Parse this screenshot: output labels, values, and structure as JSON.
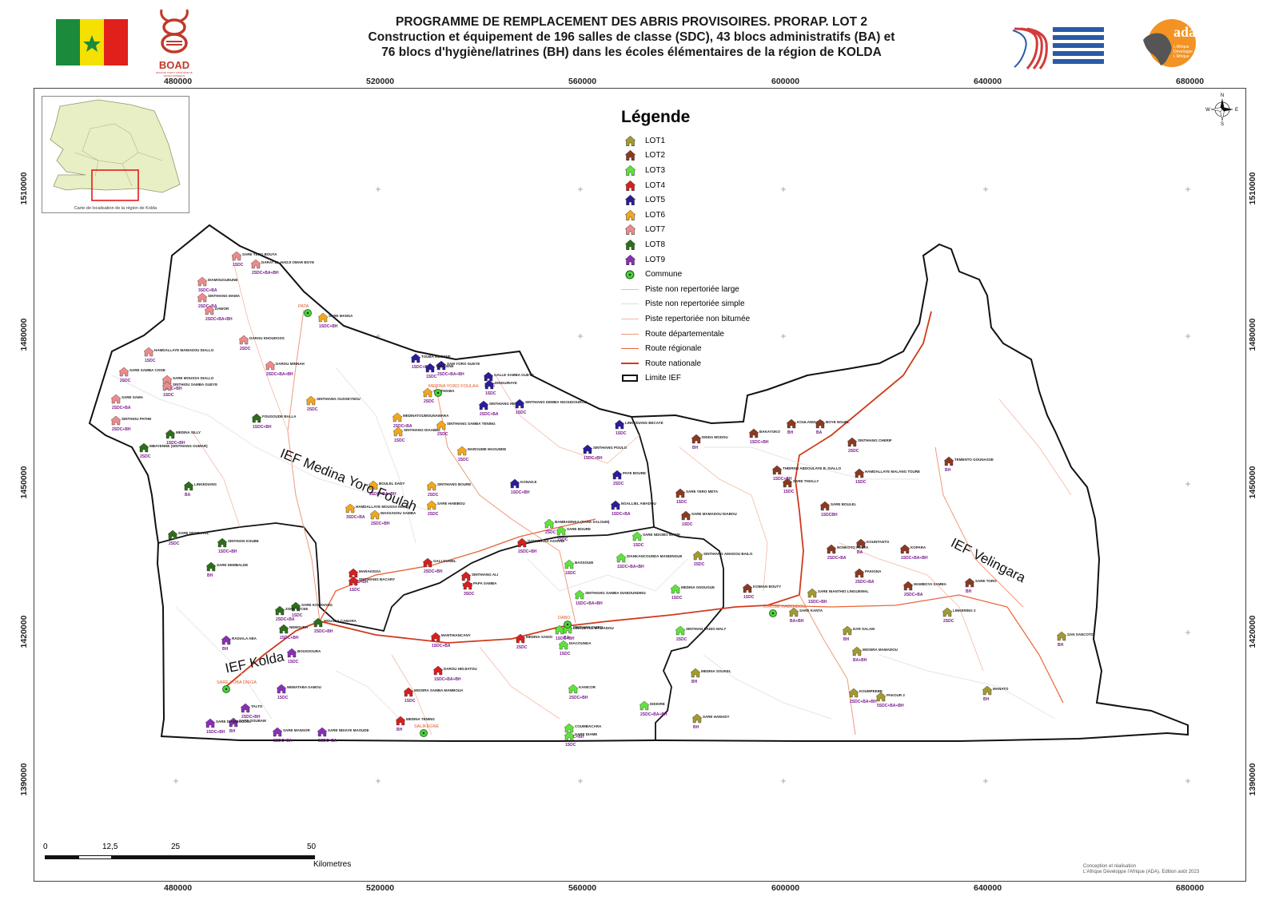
{
  "header": {
    "title_line1": "PROGRAMME DE REMPLACEMENT DES ABRIS PROVISOIRES. PRORAP. LOT 2",
    "title_line2": "Construction et équipement de 196 salles de classe (SDC), 43 blocs administratifs (BA) et",
    "title_line3": "76 blocs d'hygiène/latrines (BH) dans les écoles élémentaires de la région de KOLDA",
    "boad_text": "BOAD",
    "boad_sub": "BANQUE OUEST AFRICAINE DE DEVELOPPEMENT",
    "ada_text": "ada",
    "ada_sub": "L'Afrique Développe L'Afrique"
  },
  "axes": {
    "x_ticks": [
      "480000",
      "520000",
      "560000",
      "600000",
      "640000",
      "680000"
    ],
    "y_ticks": [
      "1510000",
      "1480000",
      "1450000",
      "1420000",
      "1390000"
    ]
  },
  "inset": {
    "caption": "Carte de localisation de la région de Kolda"
  },
  "legend": {
    "title": "Légende",
    "lots": [
      {
        "label": "LOT1",
        "color": "#a39a2e"
      },
      {
        "label": "LOT2",
        "color": "#8b3a22"
      },
      {
        "label": "LOT3",
        "color": "#5fe33a"
      },
      {
        "label": "LOT4",
        "color": "#d81f1f"
      },
      {
        "label": "LOT5",
        "color": "#2b1d99"
      },
      {
        "label": "LOT6",
        "color": "#f2a81c"
      },
      {
        "label": "LOT7",
        "color": "#f08a8a"
      },
      {
        "label": "LOT8",
        "color": "#2d6e1a"
      },
      {
        "label": "LOT9",
        "color": "#8a2fb8"
      }
    ],
    "commune": "Commune",
    "roads": [
      {
        "label": "Piste non repertoriée large",
        "color": "#c7c7c7",
        "width": 1
      },
      {
        "label": "Piste non repertoriée simple",
        "color": "#dddddd",
        "width": 1
      },
      {
        "label": "Piste repertoriée non bitumée",
        "color": "#f3b8a8",
        "width": 1
      },
      {
        "label": "Route départementale",
        "color": "#ee9a7a",
        "width": 1.2
      },
      {
        "label": "Route régionale",
        "color": "#e8653a",
        "width": 1.6
      },
      {
        "label": "Route nationale",
        "color": "#cf3b1c",
        "width": 2
      }
    ],
    "limit": "Limite IEF"
  },
  "ief_labels": {
    "medina": "IEF Medina Yoro Foulah",
    "velingara": "IEF Velingara",
    "kolda": "IEF Kolda"
  },
  "communes": [
    "PATA",
    "MEDINA YORO FOULAH",
    "DABO",
    "DIAOBE KABENDOU",
    "SARE YOBA DIEGA",
    "SALIKEGNE"
  ],
  "schools": [
    {
      "name": "SARE YERO BOUYA",
      "code": "1SDC",
      "lot": 7
    },
    {
      "name": "DARAT EL HADJI OMAR BOYE",
      "code": "2SDC+BA+BH",
      "lot": 7
    },
    {
      "name": "DIAMOUGUEUNE",
      "code": "3SDC+BA",
      "lot": 7
    },
    {
      "name": "SINTHIANG MAMA",
      "code": "2SDC+BA",
      "lot": 7
    },
    {
      "name": "DAWOR",
      "code": "2SDC+BA+BH",
      "lot": 7
    },
    {
      "name": "SARE MANSA",
      "code": "1SDC+BH",
      "lot": 6
    },
    {
      "name": "DAROU KHOUDOSS",
      "code": "2SDC",
      "lot": 7
    },
    {
      "name": "HAMDALLAYE MAMADOU DIALLO",
      "code": "1SDC",
      "lot": 7
    },
    {
      "name": "DAROU MINNAH",
      "code": "2SDC+BA+BH",
      "lot": 7
    },
    {
      "name": "SARE SAMBA CISSE",
      "code": "2SDC",
      "lot": 7
    },
    {
      "name": "SARE MOUSSA DIALLO",
      "code": "1SDC+BH",
      "lot": 7
    },
    {
      "name": "SINTHIOU SAMBA GUEYE",
      "code": "1SDC",
      "lot": 7
    },
    {
      "name": "SARE SAMA",
      "code": "2SDC+BA",
      "lot": 7
    },
    {
      "name": "SINTHIOU PATHE",
      "code": "2SDC+BH",
      "lot": 7
    },
    {
      "name": "MEDINA SILLY",
      "code": "1SDC+BH",
      "lot": 8
    },
    {
      "name": "MBAYENNE (SINTHIANG OUMAR)",
      "code": "2SDC",
      "lot": 8
    },
    {
      "name": "SINTHIANG OUSSEYNOU",
      "code": "2SDC",
      "lot": 6
    },
    {
      "name": "FOUGOUDE BALLA",
      "code": "1SDC+BH",
      "lot": 8
    },
    {
      "name": "TOUBA MBOYNE",
      "code": "1SDC+BH",
      "lot": 5
    },
    {
      "name": "SAM YORO GUEYE",
      "code": "2SDC+BA+BH",
      "lot": 5
    },
    {
      "name": "THIALENE",
      "code": "1SDC",
      "lot": 5
    },
    {
      "name": "SANTHIABA",
      "code": "2SDC",
      "lot": 6
    },
    {
      "name": "GALLE SAMBA GUEYE",
      "code": "2SDC",
      "lot": 5
    },
    {
      "name": "DINGUIRAYE",
      "code": "1SDC",
      "lot": 5
    },
    {
      "name": "SINTHIANG HELLA",
      "code": "2SDC+BA",
      "lot": 5
    },
    {
      "name": "SINTHIANG DEMBA NGOUDOUROU",
      "code": "1SDC",
      "lot": 5
    },
    {
      "name": "MEDINATOUMOUNAWARA",
      "code": "2SDC+BA",
      "lot": 6
    },
    {
      "name": "SINTHIANG DIAABEL",
      "code": "1SDC",
      "lot": 6
    },
    {
      "name": "SINTHIANG SAMBA TENING",
      "code": "2SDC",
      "lot": 6
    },
    {
      "name": "LINKEDIANG",
      "code": "BA",
      "lot": 8
    },
    {
      "name": "KONADJI",
      "code": "1SDC+BH",
      "lot": 5
    },
    {
      "name": "MAROUME MAOUNDE",
      "code": "2SDC",
      "lot": 6
    },
    {
      "name": "SINTHIANG POULO",
      "code": "1SDC+BH",
      "lot": 5
    },
    {
      "name": "PAYE BOURE",
      "code": "2SDC",
      "lot": 5
    },
    {
      "name": "BOULEL DADY",
      "code": "2SDC+BA+BH",
      "lot": 6
    },
    {
      "name": "SINTHIANG BOURE",
      "code": "2SDC",
      "lot": 6
    },
    {
      "name": "HAMDALLAYE MOUSSA MOLO",
      "code": "3SDC+BA",
      "lot": 6
    },
    {
      "name": "WASSADOU SAMBA",
      "code": "2SDC+BH",
      "lot": 6
    },
    {
      "name": "SARE HABIBOU",
      "code": "2SDC",
      "lot": 6
    },
    {
      "name": "NGALLIEL AMADOU",
      "code": "1SDC+BA",
      "lot": 5
    },
    {
      "name": "SARE DEMBAYEL",
      "code": "2SDC",
      "lot": 8
    },
    {
      "name": "SINTHIAN KOUBE",
      "code": "1SDC+BH",
      "lot": 8
    },
    {
      "name": "SARE DEMBALDE",
      "code": "BH",
      "lot": 8
    },
    {
      "name": "BAMBADINKA (SARE SALOUM)",
      "code": "2SDC",
      "lot": 3
    },
    {
      "name": "SARE BOURE",
      "code": "2SDC",
      "lot": 3
    },
    {
      "name": "GOUNDAGA ASSANE",
      "code": "2SDC+BH",
      "lot": 4
    },
    {
      "name": "GALLDUWEL",
      "code": "2SDC+BH",
      "lot": 4
    },
    {
      "name": "MARAKISSA",
      "code": "1SDC+BH",
      "lot": 4
    },
    {
      "name": "SINTHIANG BACARY",
      "code": "1SDC",
      "lot": 4
    },
    {
      "name": "SINTHIANG ALI",
      "code": "1SDC",
      "lot": 4
    },
    {
      "name": "PAPA SAMBA",
      "code": "3SDC",
      "lot": 4
    },
    {
      "name": "BASSOUM",
      "code": "1SDC",
      "lot": 3
    },
    {
      "name": "DIANKANCOUNDA MANDINGUE",
      "code": "1SDC+BA+BH",
      "lot": 3
    },
    {
      "name": "SARE NDIOBO MAWE",
      "code": "1SDC",
      "lot": 3
    },
    {
      "name": "SINTHIANG SAMBA DIABOUNDING",
      "code": "1SDC+BA+BH",
      "lot": 3
    },
    {
      "name": "EFA LINGUEYEL MAMADOU",
      "code": "1SDC+BH",
      "lot": 3
    },
    {
      "name": "SINTHIAN GUIRO",
      "code": "BA",
      "lot": 3
    },
    {
      "name": "MANTHIANCANY",
      "code": "1SDC+BA",
      "lot": 4
    },
    {
      "name": "MEDINA SADIO",
      "code": "2SDC",
      "lot": 4
    },
    {
      "name": "DIACOUNDA",
      "code": "1SDC",
      "lot": 3
    },
    {
      "name": "MEDINA GNOUGUE",
      "code": "1SDC",
      "lot": 3
    },
    {
      "name": "SINTHIAN SADIO MALY",
      "code": "2SDC",
      "lot": 3
    },
    {
      "name": "DAROU HIDJIATOU",
      "code": "1SDC+BA+BH",
      "lot": 4
    },
    {
      "name": "KANICOR",
      "code": "2SDC+BH",
      "lot": 3
    },
    {
      "name": "MISSIRA SAMBA MAMBOUA",
      "code": "1SDC",
      "lot": 4
    },
    {
      "name": "DIDIORE",
      "code": "2SDC+BA+BH",
      "lot": 3
    },
    {
      "name": "MEDINA TENING",
      "code": "BH",
      "lot": 4
    },
    {
      "name": "COUMBACARA",
      "code": "1SDC+BH",
      "lot": 3
    },
    {
      "name": "SARE DIAME",
      "code": "1SDC",
      "lot": 3
    },
    {
      "name": "SARE KOLIDIANG",
      "code": "1SDC",
      "lot": 8
    },
    {
      "name": "ZONE LYCEE",
      "code": "2SDC+BA",
      "lot": 8
    },
    {
      "name": "NEMOURA",
      "code": "2SDC+BH",
      "lot": 8
    },
    {
      "name": "RADIALA ABA",
      "code": "BH",
      "lot": 9
    },
    {
      "name": "BOUSSOURA",
      "code": "1SDC",
      "lot": 9
    },
    {
      "name": "NEMATABA GABOU",
      "code": "1SDC",
      "lot": 9
    },
    {
      "name": "TALTO",
      "code": "2SDC+BH",
      "lot": 9
    },
    {
      "name": "SARE SOUBAM",
      "code": "BH",
      "lot": 9
    },
    {
      "name": "SARE DIAMBOULOL",
      "code": "1SDC+BH",
      "lot": 9
    },
    {
      "name": "SARE MANSOR",
      "code": "2SDC+BA",
      "lot": 9
    },
    {
      "name": "SARE NDIAYE MAOUDE",
      "code": "3SDC+BA",
      "lot": 9
    },
    {
      "name": "MOUSSA CAMARA",
      "code": "2SDC+BH",
      "lot": 8
    },
    {
      "name": "LINKEDIANG BECAYE",
      "code": "1SDC",
      "lot": 5
    },
    {
      "name": "DIDDA MODOU",
      "code": "BH",
      "lot": 2
    },
    {
      "name": "BAKAYOKO",
      "code": "1SDC+BH",
      "lot": 2
    },
    {
      "name": "KOULANDIANG",
      "code": "BH",
      "lot": 2
    },
    {
      "name": "BOYE NGUEL",
      "code": "BA",
      "lot": 2
    },
    {
      "name": "SINTHIANG CHERIF",
      "code": "2SDC",
      "lot": 2
    },
    {
      "name": "TEMENTO GOUNASSE",
      "code": "BH",
      "lot": 2
    },
    {
      "name": "HAMDALLAYE MALANG TOURE",
      "code": "1SDC",
      "lot": 2
    },
    {
      "name": "THIERNO ABDOULAYE B. DIALLO",
      "code": "1SDC+BH",
      "lot": 2
    },
    {
      "name": "SARE THIALLY",
      "code": "1SDC",
      "lot": 2
    },
    {
      "name": "SARE YERO META",
      "code": "1SDC",
      "lot": 2
    },
    {
      "name": "SARE MAMADOU DIABOU",
      "code": "1SDC",
      "lot": 2
    },
    {
      "name": "SARE BOULEL",
      "code": "1SDCBH",
      "lot": 2
    },
    {
      "name": "KOUNTANTO",
      "code": "BA",
      "lot": 2
    },
    {
      "name": "NONKOTO FOUTA",
      "code": "2SDC+BA",
      "lot": 2
    },
    {
      "name": "KOPARA",
      "code": "1SDC+BA+BH",
      "lot": 2
    },
    {
      "name": "PAKIGNA",
      "code": "2SDC+BA",
      "lot": 2
    },
    {
      "name": "MAMBOYA SAMBA",
      "code": "2SDC+BA",
      "lot": 2
    },
    {
      "name": "SARE TORO",
      "code": "BH",
      "lot": 2
    },
    {
      "name": "LINKERING 2",
      "code": "2SDC",
      "lot": 1
    },
    {
      "name": "SAN SANCOTO",
      "code": "BH",
      "lot": 1
    },
    {
      "name": "DAR SALAM",
      "code": "BH",
      "lot": 1
    },
    {
      "name": "MISSIRA MAMADOU",
      "code": "BA+BH",
      "lot": 1
    },
    {
      "name": "MANATO",
      "code": "BH",
      "lot": 1
    },
    {
      "name": "KOUMPEEBE",
      "code": "2SDC+BA+BH",
      "lot": 1
    },
    {
      "name": "PAKOUR 2",
      "code": "5SDC+BA+BH",
      "lot": 1
    },
    {
      "name": "MEDINA SOUKEL",
      "code": "BH",
      "lot": 1
    },
    {
      "name": "SARE HAMADY",
      "code": "BH",
      "lot": 1
    },
    {
      "name": "SARE KANTA",
      "code": "BA+BH",
      "lot": 1
    },
    {
      "name": "SARE NIANTHIO LINGUEWAL",
      "code": "1SDC+BH",
      "lot": 1
    },
    {
      "name": "SINTHIANG AMADOU BAILO",
      "code": "2SDC",
      "lot": 1
    },
    {
      "name": "KOIMAN BOUTY",
      "code": "1SDC",
      "lot": 2
    },
    {
      "name": "TEMENTO BOTHIE",
      "code": "1SDC+BH",
      "lot": 2
    }
  ],
  "scalebar": {
    "labels": [
      "0",
      "12,5",
      "25",
      "50"
    ],
    "unit": "Kilometres"
  },
  "credit": {
    "line1": "Conception et réalisation",
    "line2": "L'Afrique Développe l'Afrique (ADA). Edition août 2023"
  }
}
